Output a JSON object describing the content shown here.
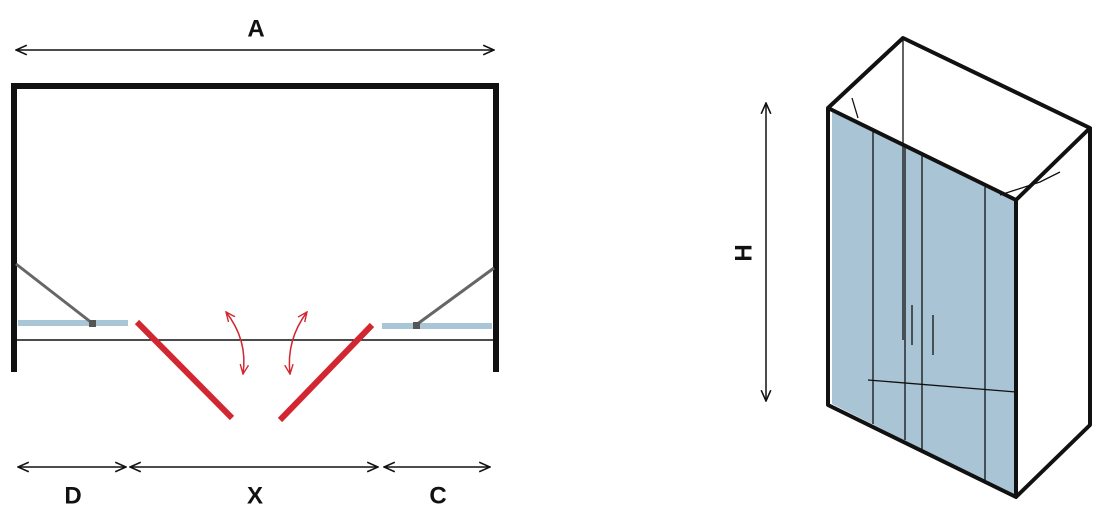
{
  "plan": {
    "width_label": "A",
    "left_label": "D",
    "opening_label": "X",
    "right_label": "C"
  },
  "view": {
    "height_label": "H"
  }
}
